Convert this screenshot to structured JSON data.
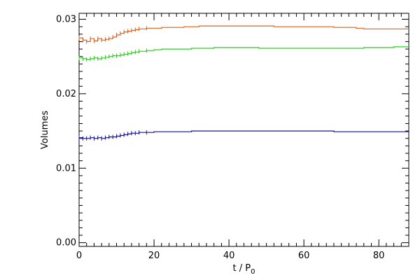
{
  "chart_data": {
    "type": "line",
    "title": "",
    "xlabel": {
      "main": "t / P",
      "sub": "0"
    },
    "ylabel": "Volumes",
    "xlim": [
      0,
      88
    ],
    "ylim": [
      -0.0005,
      0.0308
    ],
    "grid": false,
    "x_ticks": [
      0,
      20,
      40,
      60,
      80
    ],
    "x_tick_labels": [
      "0",
      "20",
      "40",
      "60",
      "80"
    ],
    "y_ticks": [
      0.0,
      0.01,
      0.02,
      0.03
    ],
    "y_tick_labels": [
      "0.00",
      "0.01",
      "0.02",
      "0.03"
    ],
    "series": [
      {
        "color": "#e0601a",
        "x": [
          0,
          1,
          2,
          3,
          4,
          5,
          6,
          7,
          8,
          9,
          10,
          11,
          12,
          13,
          14,
          15,
          16,
          18,
          20,
          22,
          25,
          28,
          30,
          32,
          36,
          40,
          44,
          48,
          52,
          56,
          60,
          64,
          68,
          70,
          72,
          74,
          76,
          80,
          84,
          88
        ],
        "y": [
          0.0275,
          0.0272,
          0.027,
          0.0274,
          0.0271,
          0.0274,
          0.0272,
          0.0273,
          0.0274,
          0.0276,
          0.0279,
          0.0281,
          0.0283,
          0.0284,
          0.0285,
          0.0286,
          0.0287,
          0.0288,
          0.0288,
          0.0289,
          0.0289,
          0.029,
          0.029,
          0.0291,
          0.0291,
          0.0291,
          0.0291,
          0.0291,
          0.029,
          0.029,
          0.029,
          0.029,
          0.0289,
          0.0289,
          0.0289,
          0.0288,
          0.0287,
          0.0287,
          0.0287,
          0.0287
        ]
      },
      {
        "color": "#2ccd20",
        "x": [
          0,
          1,
          2,
          3,
          4,
          5,
          6,
          7,
          8,
          9,
          10,
          11,
          12,
          13,
          14,
          15,
          16,
          18,
          20,
          22,
          25,
          28,
          30,
          32,
          36,
          40,
          44,
          48,
          52,
          56,
          60,
          64,
          68,
          70,
          72,
          74,
          76,
          80,
          84,
          88
        ],
        "y": [
          0.0248,
          0.0247,
          0.0246,
          0.0247,
          0.0248,
          0.0247,
          0.0248,
          0.0249,
          0.025,
          0.0251,
          0.0251,
          0.0252,
          0.0253,
          0.0254,
          0.0255,
          0.0256,
          0.0257,
          0.0258,
          0.0259,
          0.026,
          0.026,
          0.026,
          0.0261,
          0.0261,
          0.0262,
          0.0262,
          0.0262,
          0.0261,
          0.0261,
          0.0261,
          0.0261,
          0.0261,
          0.0261,
          0.0261,
          0.0261,
          0.0261,
          0.0262,
          0.0262,
          0.0263,
          0.0263
        ]
      },
      {
        "color": "#1010a0",
        "x": [
          0,
          1,
          2,
          3,
          4,
          5,
          6,
          7,
          8,
          9,
          10,
          11,
          12,
          13,
          14,
          15,
          16,
          18,
          20,
          22,
          25,
          28,
          30,
          32,
          36,
          40,
          44,
          48,
          52,
          56,
          60,
          64,
          68,
          70,
          72,
          74,
          76,
          80,
          84,
          88
        ],
        "y": [
          0.0141,
          0.014,
          0.014,
          0.0141,
          0.014,
          0.0141,
          0.014,
          0.0141,
          0.0142,
          0.0142,
          0.0143,
          0.0144,
          0.0145,
          0.0146,
          0.0147,
          0.0147,
          0.0148,
          0.0148,
          0.0149,
          0.0149,
          0.0149,
          0.0149,
          0.015,
          0.015,
          0.015,
          0.015,
          0.015,
          0.015,
          0.015,
          0.015,
          0.015,
          0.015,
          0.0149,
          0.0149,
          0.0149,
          0.0149,
          0.0149,
          0.0149,
          0.0149,
          0.0149
        ]
      }
    ]
  }
}
